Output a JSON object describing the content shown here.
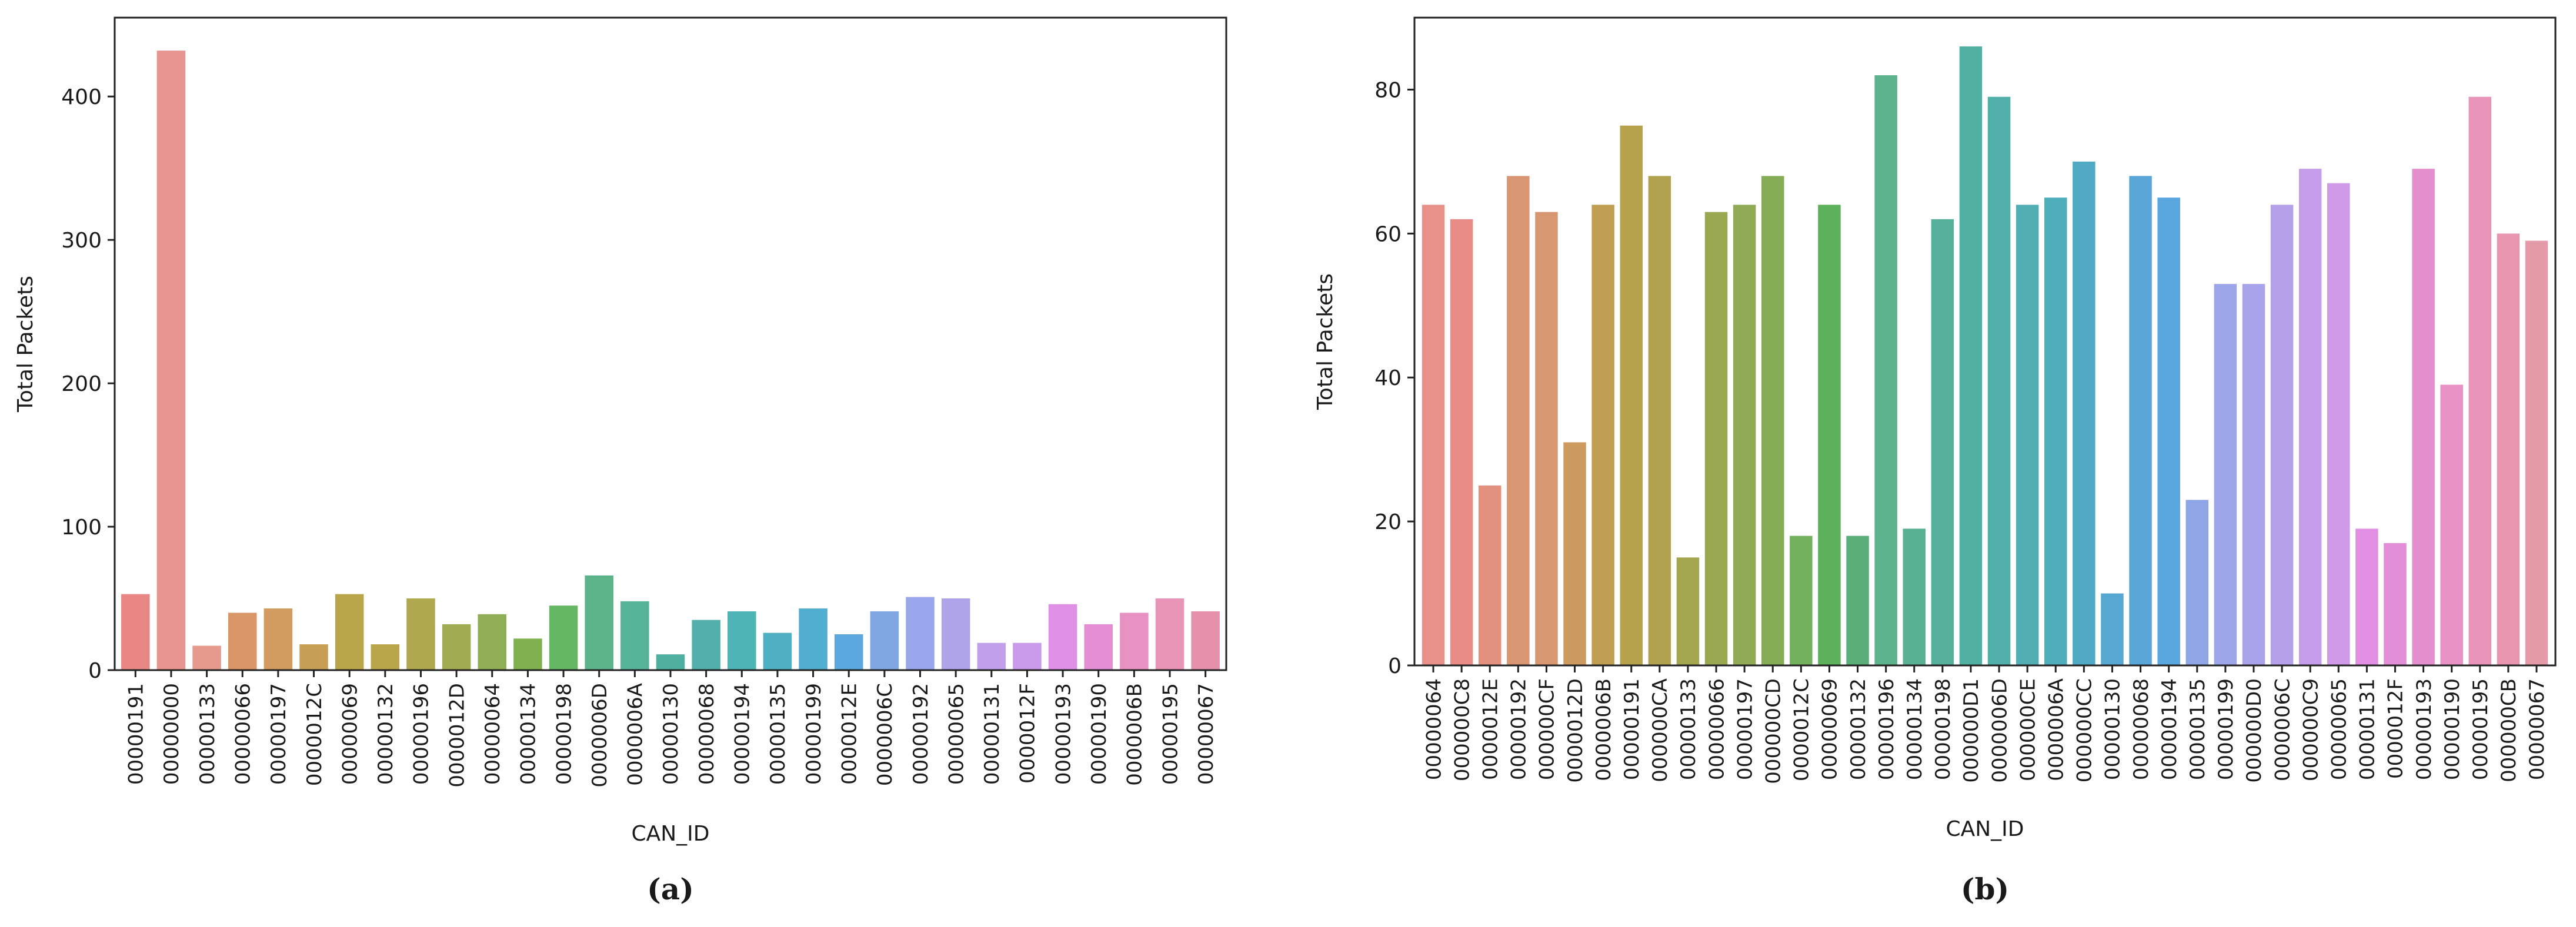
{
  "chart_data": [
    {
      "type": "bar",
      "panel_label": "(a)",
      "title": "",
      "xlabel": "CAN_ID",
      "ylabel": "Total Packets",
      "ylim": [
        0,
        455
      ],
      "yticks": [
        0,
        100,
        200,
        300,
        400
      ],
      "grid": false,
      "categories": [
        "00000191",
        "00000000",
        "00000133",
        "00000066",
        "00000197",
        "0000012C",
        "00000069",
        "00000132",
        "00000196",
        "0000012D",
        "00000064",
        "00000134",
        "00000198",
        "0000006D",
        "0000006A",
        "00000130",
        "00000068",
        "00000194",
        "00000135",
        "00000199",
        "0000012E",
        "0000006C",
        "00000192",
        "00000065",
        "00000131",
        "0000012F",
        "00000193",
        "00000190",
        "0000006B",
        "00000195",
        "00000067"
      ],
      "values": [
        53,
        432,
        17,
        40,
        43,
        18,
        53,
        18,
        50,
        32,
        39,
        22,
        45,
        66,
        48,
        11,
        35,
        41,
        26,
        43,
        25,
        41,
        51,
        50,
        19,
        19,
        46,
        32,
        40,
        50,
        41
      ],
      "colors": [
        "#e88783",
        "#e8948f",
        "#e6998d",
        "#d99666",
        "#d09c5f",
        "#c8a055",
        "#b9a64b",
        "#b9a64b",
        "#b0a84f",
        "#a0ac51",
        "#8fae55",
        "#7fb24f",
        "#66b763",
        "#5db38a",
        "#55b396",
        "#4fb09f",
        "#51b0a9",
        "#4fb4b5",
        "#4fb0c1",
        "#52aed0",
        "#5aa8dd",
        "#82a8e4",
        "#9aa6ec",
        "#afa3ea",
        "#c29feb",
        "#c99aea",
        "#df8fe6",
        "#e48fd5",
        "#e892c3",
        "#e894b6",
        "#e691ab"
      ]
    },
    {
      "type": "bar",
      "panel_label": "(b)",
      "title": "",
      "xlabel": "CAN_ID",
      "ylabel": "Total Packets",
      "ylim": [
        0,
        90
      ],
      "yticks": [
        0,
        20,
        40,
        60,
        80
      ],
      "grid": false,
      "categories": [
        "00000064",
        "000000C8",
        "0000012E",
        "00000192",
        "000000CF",
        "0000012D",
        "0000006B",
        "00000191",
        "000000CA",
        "00000133",
        "00000066",
        "00000197",
        "000000CD",
        "0000012C",
        "00000069",
        "00000132",
        "00000196",
        "00000134",
        "00000198",
        "000000D1",
        "0000006D",
        "000000CE",
        "0000006A",
        "000000CC",
        "00000130",
        "00000068",
        "00000194",
        "00000135",
        "00000199",
        "000000D0",
        "0000006C",
        "000000C9",
        "00000065",
        "00000131",
        "0000012F",
        "00000193",
        "00000190",
        "00000195",
        "000000CB",
        "00000067"
      ],
      "values": [
        64,
        62,
        25,
        68,
        63,
        31,
        64,
        75,
        68,
        15,
        63,
        64,
        68,
        18,
        64,
        18,
        82,
        19,
        62,
        86,
        79,
        64,
        65,
        70,
        10,
        68,
        65,
        23,
        53,
        53,
        64,
        69,
        67,
        19,
        17,
        69,
        39,
        79,
        60,
        59
      ],
      "colors": [
        "#e8908a",
        "#e88c87",
        "#e2917e",
        "#d99672",
        "#d79770",
        "#cd9b60",
        "#bf9e52",
        "#b6a14d",
        "#b0a24f",
        "#a4a54f",
        "#9aa851",
        "#90aa55",
        "#84ad56",
        "#72b05b",
        "#5cb15a",
        "#5aaf79",
        "#5cb38b",
        "#58b193",
        "#55b09c",
        "#52b0a3",
        "#52b0aa",
        "#51aeb2",
        "#50adba",
        "#51aac3",
        "#56a8d2",
        "#5aa6d8",
        "#5aa6df",
        "#8ea6e6",
        "#9ea6ea",
        "#a8a3eb",
        "#b5a0ea",
        "#c49ce9",
        "#d09ae8",
        "#e08fe3",
        "#e28fd7",
        "#e48fcd",
        "#e791c5",
        "#e894b8",
        "#e896b0",
        "#e59aa8"
      ]
    }
  ]
}
